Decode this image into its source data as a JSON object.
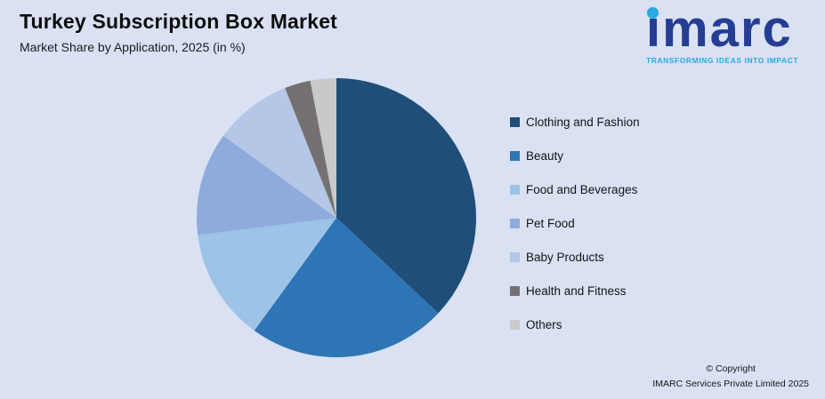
{
  "header": {
    "title": "Turkey Subscription Box Market",
    "subtitle": "Market Share by Application, 2025 (in %)"
  },
  "logo": {
    "brand": "imarc",
    "tagline": "TRANSFORMING IDEAS INTO IMPACT"
  },
  "chart_data": {
    "type": "pie",
    "title": "Turkey Subscription Box Market",
    "subtitle": "Market Share by Application, 2025 (in %)",
    "unit": "%",
    "labels": [
      "Clothing and Fashion",
      "Beauty",
      "Food and Beverages",
      "Pet Food",
      "Baby Products",
      "Health and Fitness",
      "Others"
    ],
    "values": [
      37,
      23,
      13,
      12,
      9,
      3,
      3
    ],
    "colors": [
      "#1f4e79",
      "#2e75b6",
      "#9dc3e6",
      "#8faadc",
      "#b4c7e7",
      "#767171",
      "#c9c9c9"
    ],
    "start_angle_deg": -90,
    "direction": "clockwise",
    "legend_position": "right",
    "data_labels_shown": false
  },
  "footer": {
    "copyright_line1": "© Copyright",
    "copyright_line2": "IMARC Services Private Limited 2025"
  }
}
